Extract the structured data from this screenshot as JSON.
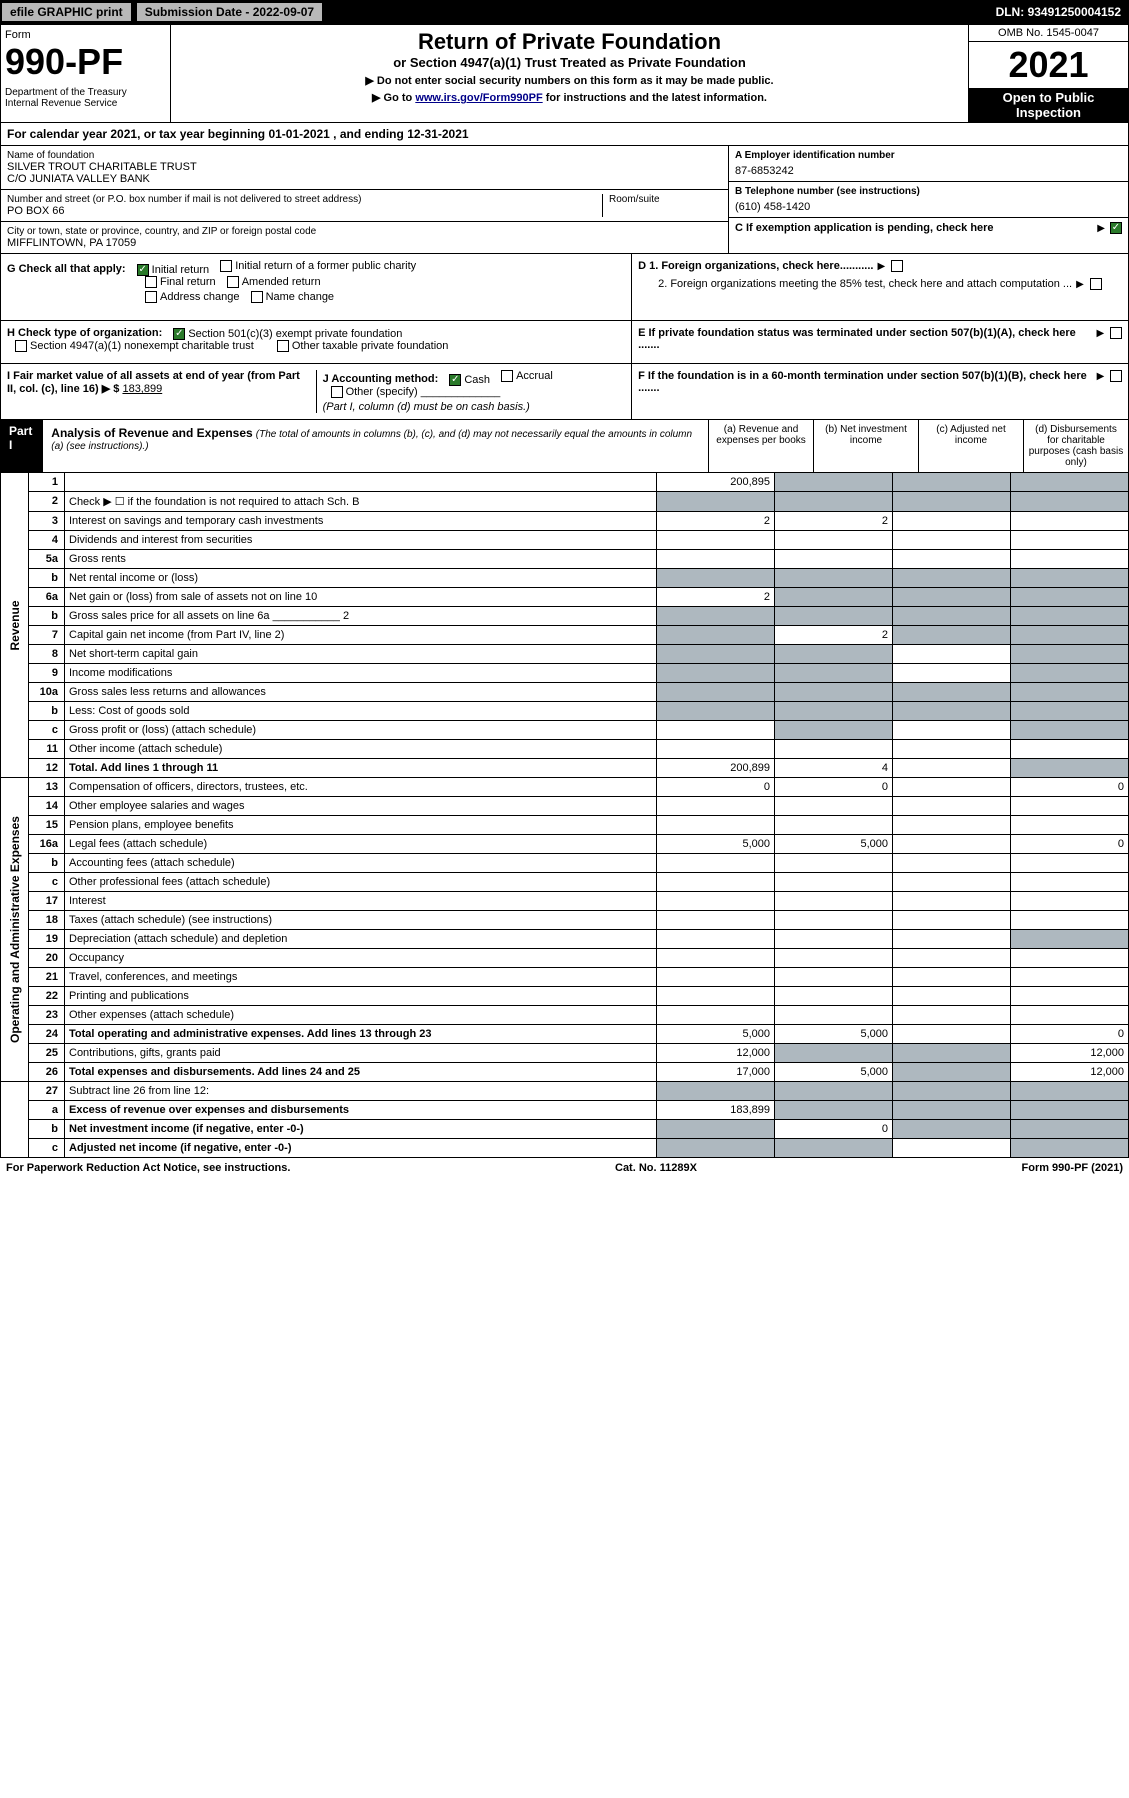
{
  "topbar": {
    "efile": "efile GRAPHIC print",
    "subdate_label": "Submission Date - ",
    "subdate": "2022-09-07",
    "dln_label": "DLN: ",
    "dln": "93491250004152"
  },
  "header": {
    "form_word": "Form",
    "form_number": "990-PF",
    "dept": "Department of the Treasury\nInternal Revenue Service",
    "title": "Return of Private Foundation",
    "sub1": "or Section 4947(a)(1) Trust Treated as Private Foundation",
    "sub2": "▶ Do not enter social security numbers on this form as it may be made public.",
    "sub3_prefix": "▶ Go to ",
    "sub3_link": "www.irs.gov/Form990PF",
    "sub3_suffix": " for instructions and the latest information.",
    "omb": "OMB No. 1545-0047",
    "year": "2021",
    "open": "Open to Public Inspection"
  },
  "cal_year": {
    "prefix": "For calendar year 2021, or tax year beginning ",
    "begin": "01-01-2021",
    "mid": " , and ending ",
    "end": "12-31-2021"
  },
  "name_block": {
    "label": "Name of foundation",
    "name": "SILVER TROUT CHARITABLE TRUST",
    "co": "C/O JUNIATA VALLEY BANK"
  },
  "addr_block": {
    "label": "Number and street (or P.O. box number if mail is not delivered to street address)",
    "room_label": "Room/suite",
    "addr": "PO BOX 66"
  },
  "city_block": {
    "label": "City or town, state or province, country, and ZIP or foreign postal code",
    "city": "MIFFLINTOWN, PA  17059"
  },
  "ein_block": {
    "label": "A Employer identification number",
    "val": "87-6853242"
  },
  "tel_block": {
    "label": "B Telephone number (see instructions)",
    "val": "(610) 458-1420"
  },
  "c_block": {
    "label": "C If exemption application is pending, check here"
  },
  "g_block": {
    "label": "G Check all that apply:",
    "opts": [
      "Initial return",
      "Initial return of a former public charity",
      "Final return",
      "Amended return",
      "Address change",
      "Name change"
    ],
    "checked_idx": 0
  },
  "h_block": {
    "label": "H Check type of organization:",
    "opts": [
      "Section 501(c)(3) exempt private foundation",
      "Section 4947(a)(1) nonexempt charitable trust",
      "Other taxable private foundation"
    ],
    "checked_idx": 0
  },
  "i_block": {
    "label": "I Fair market value of all assets at end of year (from Part II, col. (c), line 16) ▶ $",
    "val": "183,899"
  },
  "j_block": {
    "label": "J Accounting method:",
    "opts": [
      "Cash",
      "Accrual",
      "Other (specify)"
    ],
    "checked_idx": 0,
    "note": "(Part I, column (d) must be on cash basis.)"
  },
  "d_block": {
    "d1": "D 1. Foreign organizations, check here...........",
    "d2": "2. Foreign organizations meeting the 85% test, check here and attach computation ..."
  },
  "e_block": {
    "text": "E  If private foundation status was terminated under section 507(b)(1)(A), check here ......."
  },
  "f_block": {
    "text": "F  If the foundation is in a 60-month termination under section 507(b)(1)(B), check here ......."
  },
  "part1": {
    "title": "Part I",
    "ana": "Analysis of Revenue and Expenses",
    "note": "(The total of amounts in columns (b), (c), and (d) may not necessarily equal the amounts in column (a) (see instructions).)",
    "cols": [
      "(a) Revenue and expenses per books",
      "(b) Net investment income",
      "(c) Adjusted net income",
      "(d) Disbursements for charitable purposes (cash basis only)"
    ]
  },
  "revenue_side": "Revenue",
  "expenses_side": "Operating and Administrative Expenses",
  "rows": [
    {
      "n": "1",
      "d": "",
      "a": "200,895",
      "b": "",
      "c": "",
      "shade_bcd": true,
      "shade_cd": false
    },
    {
      "n": "2",
      "d": "Check ▶ ☐ if the foundation is not required to attach Sch. B",
      "allshade": true,
      "dotsafter": true
    },
    {
      "n": "3",
      "d": "Interest on savings and temporary cash investments",
      "a": "2",
      "b": "2"
    },
    {
      "n": "4",
      "d": "Dividends and interest from securities"
    },
    {
      "n": "5a",
      "d": "Gross rents"
    },
    {
      "n": "b",
      "d": "Net rental income or (loss)",
      "allshade": true,
      "underline": true
    },
    {
      "n": "6a",
      "d": "Net gain or (loss) from sale of assets not on line 10",
      "a": "2",
      "shade_bcd": true
    },
    {
      "n": "b",
      "d": "Gross sales price for all assets on line 6a ___________ 2",
      "allshade": true
    },
    {
      "n": "7",
      "d": "Capital gain net income (from Part IV, line 2)",
      "b": "2",
      "shade_a": true,
      "shade_cd": true
    },
    {
      "n": "8",
      "d": "Net short-term capital gain",
      "shade_ab": true,
      "shade_d": true
    },
    {
      "n": "9",
      "d": "Income modifications",
      "shade_ab": true,
      "shade_d": true
    },
    {
      "n": "10a",
      "d": "Gross sales less returns and allowances",
      "allshade": true,
      "underline": true
    },
    {
      "n": "b",
      "d": "Less: Cost of goods sold",
      "allshade": true,
      "underline": true
    },
    {
      "n": "c",
      "d": "Gross profit or (loss) (attach schedule)",
      "shade_b": true,
      "shade_d": true
    },
    {
      "n": "11",
      "d": "Other income (attach schedule)"
    },
    {
      "n": "12",
      "d": "Total. Add lines 1 through 11",
      "bold": true,
      "a": "200,899",
      "b": "4",
      "shade_d": true
    }
  ],
  "exp_rows": [
    {
      "n": "13",
      "d": "Compensation of officers, directors, trustees, etc.",
      "a": "0",
      "b": "0",
      "dcol": "0"
    },
    {
      "n": "14",
      "d": "Other employee salaries and wages"
    },
    {
      "n": "15",
      "d": "Pension plans, employee benefits"
    },
    {
      "n": "16a",
      "d": "Legal fees (attach schedule)",
      "a": "5,000",
      "b": "5,000",
      "dcol": "0"
    },
    {
      "n": "b",
      "d": "Accounting fees (attach schedule)"
    },
    {
      "n": "c",
      "d": "Other professional fees (attach schedule)"
    },
    {
      "n": "17",
      "d": "Interest"
    },
    {
      "n": "18",
      "d": "Taxes (attach schedule) (see instructions)"
    },
    {
      "n": "19",
      "d": "Depreciation (attach schedule) and depletion",
      "shade_d": true
    },
    {
      "n": "20",
      "d": "Occupancy"
    },
    {
      "n": "21",
      "d": "Travel, conferences, and meetings"
    },
    {
      "n": "22",
      "d": "Printing and publications"
    },
    {
      "n": "23",
      "d": "Other expenses (attach schedule)"
    },
    {
      "n": "24",
      "d": "Total operating and administrative expenses. Add lines 13 through 23",
      "bold": true,
      "a": "5,000",
      "b": "5,000",
      "dcol": "0"
    },
    {
      "n": "25",
      "d": "Contributions, gifts, grants paid",
      "a": "12,000",
      "shade_bc": true,
      "dcol": "12,000"
    },
    {
      "n": "26",
      "d": "Total expenses and disbursements. Add lines 24 and 25",
      "bold": true,
      "a": "17,000",
      "b": "5,000",
      "shade_c": true,
      "dcol": "12,000"
    }
  ],
  "bottom_rows": [
    {
      "n": "27",
      "d": "Subtract line 26 from line 12:",
      "shade_all": true
    },
    {
      "n": "a",
      "d": "Excess of revenue over expenses and disbursements",
      "bold": true,
      "a": "183,899",
      "shade_bcd": true
    },
    {
      "n": "b",
      "d": "Net investment income (if negative, enter -0-)",
      "bold": true,
      "b": "0",
      "shade_a": true,
      "shade_cd": true
    },
    {
      "n": "c",
      "d": "Adjusted net income (if negative, enter -0-)",
      "bold": true,
      "shade_ab": true,
      "shade_d": true
    }
  ],
  "footer": {
    "left": "For Paperwork Reduction Act Notice, see instructions.",
    "mid": "Cat. No. 11289X",
    "right": "Form 990-PF (2021)"
  },
  "colors": {
    "shade": "#aeb8bf",
    "link": "#0000aa",
    "check_green": "#2a7a2a"
  }
}
